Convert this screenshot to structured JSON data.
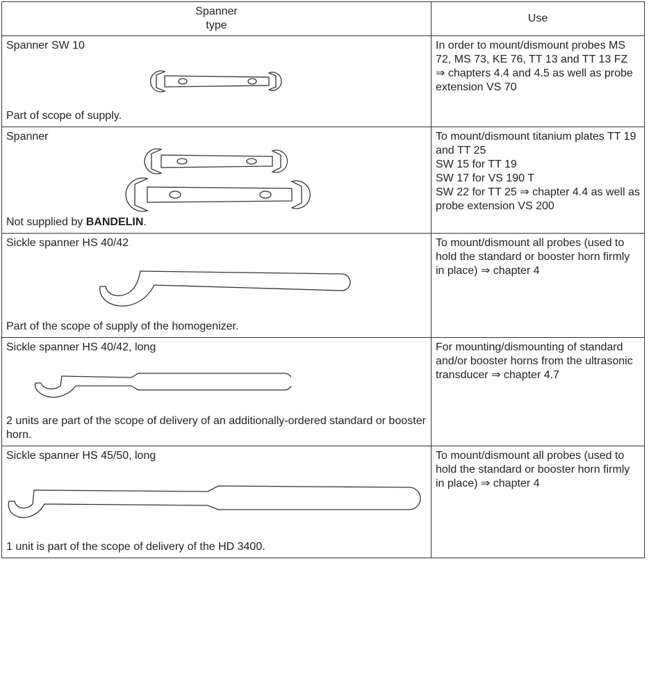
{
  "table": {
    "header": {
      "type": "Spanner\ntype",
      "use": "Use"
    },
    "rows": [
      {
        "name": "Spanner SW 10",
        "note": [
          "Part of scope of supply."
        ],
        "use": [
          "In order to mount/dismount probes MS 72, MS 73, KE 76, TT 13 and TT 13 FZ  ⇒  chapters 4.4 and 4.5 as well as probe extension VS 70"
        ]
      },
      {
        "name": "Spanner",
        "note": [
          "Not supplied by ",
          "BANDELIN",
          "."
        ],
        "use": [
          "To mount/dismount titanium plates TT 19 and TT 25",
          "SW 15 for TT 19",
          "SW 17 for VS 190 T",
          "SW 22 for TT 25  ⇒  chapter 4.4 as well as probe extension VS 200"
        ]
      },
      {
        "name": "Sickle spanner HS 40/42",
        "note": [
          "Part of the scope of supply of the homogenizer."
        ],
        "use": [
          "To mount/dismount all probes (used to hold the standard or booster horn firmly in place)  ⇒  chapter 4"
        ]
      },
      {
        "name": "Sickle spanner HS 40/42, long",
        "note": [
          "2 units are part of the scope of delivery of an additionally-ordered standard or booster horn."
        ],
        "use": [
          "For mounting/dismounting of standard and/or booster horns from the ultrasonic transducer  ⇒  chapter 4.7"
        ]
      },
      {
        "name": "Sickle spanner HS 45/50, long",
        "note": [
          "1 unit is part of the scope of delivery of the HD 3400."
        ],
        "use": [
          "To mount/dismount all probes (used to hold the standard or booster horn firmly in place)  ⇒  chapter 4"
        ]
      }
    ]
  }
}
